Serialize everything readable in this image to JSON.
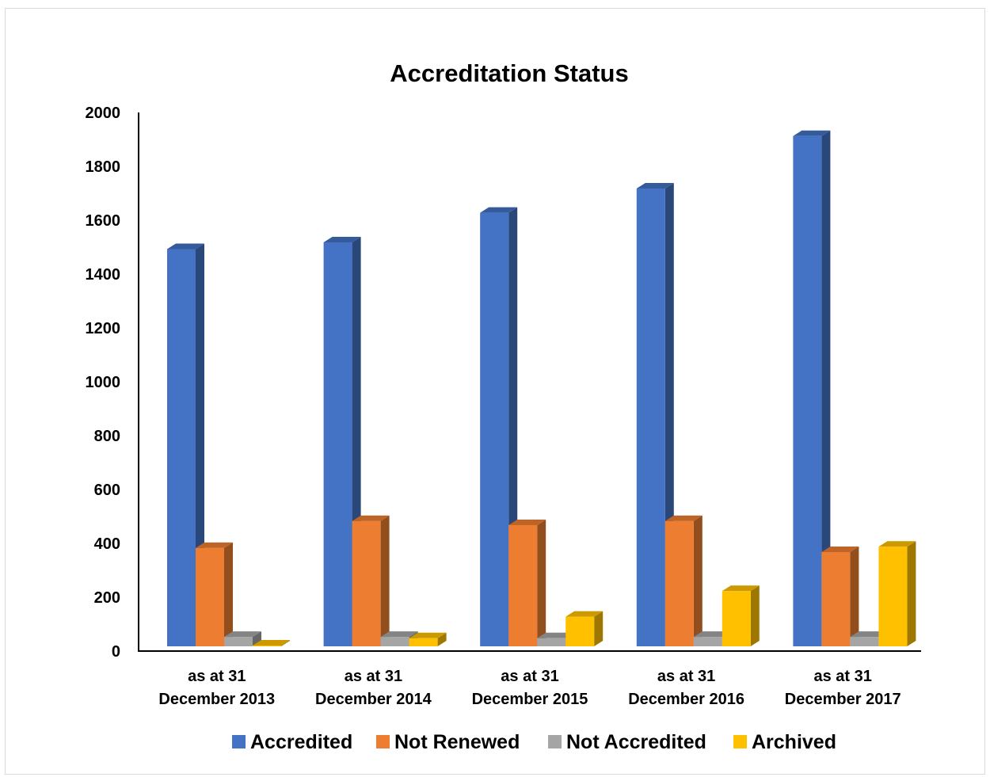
{
  "chart_data": {
    "type": "bar",
    "title": "Accreditation Status",
    "xlabel": "",
    "ylabel": "",
    "ylim": [
      0,
      2000
    ],
    "y_ticks": [
      0,
      200,
      400,
      600,
      800,
      1000,
      1200,
      1400,
      1600,
      1800,
      2000
    ],
    "categories": [
      [
        "as at 31",
        "December 2013"
      ],
      [
        "as at 31",
        "December 2014"
      ],
      [
        "as at 31",
        "December 2015"
      ],
      [
        "as at 31",
        "December 2016"
      ],
      [
        "as at 31",
        "December 2017"
      ]
    ],
    "series": [
      {
        "name": "Accredited",
        "color": "#4472C4",
        "values": [
          1475,
          1500,
          1610,
          1700,
          1895
        ]
      },
      {
        "name": "Not Renewed",
        "color": "#ED7D31",
        "values": [
          365,
          465,
          450,
          465,
          350
        ]
      },
      {
        "name": "Not Accredited",
        "color": "#A5A5A5",
        "values": [
          35,
          35,
          30,
          35,
          35
        ]
      },
      {
        "name": "Archived",
        "color": "#FFC000",
        "values": [
          3,
          30,
          110,
          205,
          370
        ]
      }
    ],
    "grid": false,
    "legend_position": "bottom",
    "style": "3d-clustered-column"
  }
}
